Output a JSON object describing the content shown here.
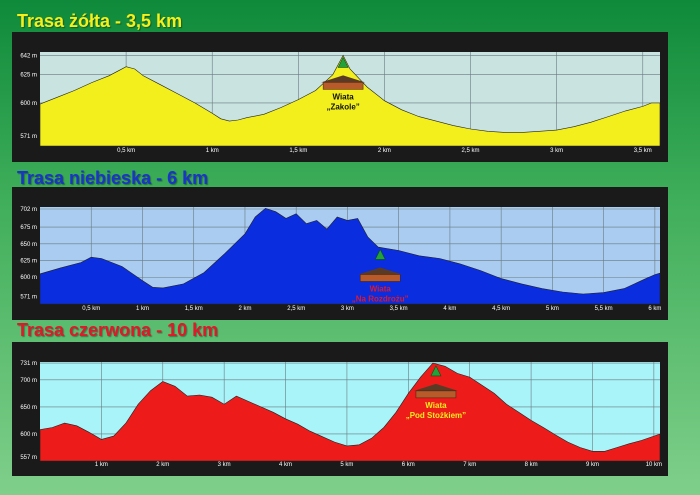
{
  "chart_data": [
    {
      "type": "area",
      "title": "Trasa żółta - 3,5 km",
      "title_color": "#f5ef1a",
      "fill_color": "#f2ef1d",
      "plot_bg": "#c8e3e0",
      "x_tick_labels": [
        "0,5 km",
        "1 km",
        "1,5 km",
        "2 km",
        "2,5 km",
        "3 km",
        "3,5 km"
      ],
      "x_ticks": [
        0.5,
        1,
        1.5,
        2,
        2.5,
        3,
        3.5
      ],
      "y_tick_labels": [
        "642 m",
        "625 m",
        "600 m",
        "571 m"
      ],
      "y_ticks": [
        642,
        625,
        600,
        571
      ],
      "xlim": [
        0,
        3.6
      ],
      "ylim": [
        562,
        645
      ],
      "x": [
        0,
        0.05,
        0.1,
        0.2,
        0.3,
        0.4,
        0.45,
        0.5,
        0.55,
        0.6,
        0.7,
        0.8,
        0.9,
        1.0,
        1.05,
        1.1,
        1.15,
        1.2,
        1.3,
        1.4,
        1.5,
        1.6,
        1.7,
        1.76,
        1.8,
        1.9,
        2.0,
        2.1,
        2.2,
        2.3,
        2.4,
        2.5,
        2.6,
        2.7,
        2.8,
        2.9,
        3.0,
        3.1,
        3.2,
        3.3,
        3.4,
        3.5,
        3.55,
        3.6
      ],
      "y": [
        599,
        602,
        605,
        611,
        618,
        624,
        628,
        632,
        630,
        624,
        616,
        608,
        600,
        591,
        586,
        584,
        585,
        587,
        590,
        596,
        603,
        611,
        625,
        642,
        630,
        614,
        602,
        594,
        588,
        584,
        580,
        577,
        575,
        574,
        574,
        575,
        576,
        579,
        583,
        588,
        593,
        597,
        600,
        600
      ],
      "shelter": {
        "label": "Wiata",
        "name": "„Zakole”",
        "x": 1.76,
        "label_color": "#111111"
      }
    },
    {
      "type": "area",
      "title": "Trasa niebieska - 6 km",
      "title_color": "#1a34c8",
      "fill_color": "#0a2de0",
      "plot_bg": "#a9ccf0",
      "x_tick_labels": [
        "0,5 km",
        "1 km",
        "1,5 km",
        "2 km",
        "2,5 km",
        "3 km",
        "3,5 km",
        "4 km",
        "4,5 km",
        "5 km",
        "5,5 km",
        "6 km"
      ],
      "x_ticks": [
        0.5,
        1,
        1.5,
        2,
        2.5,
        3,
        3.5,
        4,
        4.5,
        5,
        5.5,
        6
      ],
      "y_tick_labels": [
        "702 m",
        "675 m",
        "650 m",
        "625 m",
        "600 m",
        "571 m"
      ],
      "y_ticks": [
        702,
        675,
        650,
        625,
        600,
        571
      ],
      "xlim": [
        0,
        6.05
      ],
      "ylim": [
        560,
        705
      ],
      "x": [
        0,
        0.2,
        0.4,
        0.5,
        0.6,
        0.8,
        1.0,
        1.1,
        1.2,
        1.4,
        1.6,
        1.8,
        2.0,
        2.1,
        2.2,
        2.3,
        2.4,
        2.5,
        2.6,
        2.7,
        2.8,
        2.9,
        3.0,
        3.1,
        3.2,
        3.3,
        3.5,
        3.7,
        3.9,
        4.1,
        4.3,
        4.5,
        4.7,
        4.9,
        5.1,
        5.3,
        5.5,
        5.7,
        5.8,
        5.9,
        6.0,
        6.05
      ],
      "y": [
        605,
        614,
        622,
        630,
        628,
        616,
        595,
        585,
        584,
        590,
        607,
        635,
        665,
        690,
        703,
        698,
        688,
        695,
        680,
        685,
        672,
        690,
        685,
        688,
        660,
        645,
        640,
        632,
        628,
        620,
        610,
        598,
        590,
        583,
        578,
        575,
        577,
        583,
        590,
        597,
        604,
        606
      ],
      "shelter": {
        "label": "Wiata",
        "name": "„Na Rozdrożu”",
        "x": 3.32,
        "label_color": "#e0182a"
      }
    },
    {
      "type": "area",
      "title": "Trasa czerwona - 10 km",
      "title_color": "#e0182a",
      "fill_color": "#ee1b1b",
      "plot_bg": "#a8f4f8",
      "x_tick_labels": [
        "1 km",
        "2 km",
        "3 km",
        "4 km",
        "5 km",
        "6 km",
        "7 km",
        "8 km",
        "9 km",
        "10 km"
      ],
      "x_ticks": [
        1,
        2,
        3,
        4,
        5,
        6,
        7,
        8,
        9,
        10
      ],
      "y_tick_labels": [
        "731 m",
        "700 m",
        "650 m",
        "600 m",
        "557 m"
      ],
      "y_ticks": [
        731,
        700,
        650,
        600,
        557
      ],
      "xlim": [
        0,
        10.1
      ],
      "ylim": [
        550,
        733
      ],
      "x": [
        0,
        0.2,
        0.4,
        0.6,
        0.8,
        1.0,
        1.2,
        1.4,
        1.6,
        1.8,
        2.0,
        2.2,
        2.4,
        2.6,
        2.8,
        3.0,
        3.2,
        3.4,
        3.6,
        3.8,
        4.0,
        4.2,
        4.4,
        4.6,
        4.8,
        5.0,
        5.2,
        5.4,
        5.6,
        5.8,
        6.0,
        6.2,
        6.4,
        6.6,
        6.8,
        7.0,
        7.2,
        7.4,
        7.6,
        7.8,
        8.0,
        8.2,
        8.4,
        8.6,
        8.8,
        9.0,
        9.2,
        9.4,
        9.6,
        9.8,
        10.0,
        10.1
      ],
      "y": [
        608,
        612,
        620,
        615,
        603,
        590,
        596,
        620,
        655,
        680,
        697,
        688,
        670,
        672,
        668,
        655,
        670,
        660,
        650,
        640,
        628,
        618,
        605,
        595,
        585,
        578,
        580,
        592,
        612,
        640,
        675,
        705,
        731,
        725,
        712,
        705,
        690,
        675,
        655,
        640,
        625,
        612,
        598,
        585,
        575,
        568,
        568,
        575,
        582,
        588,
        596,
        600
      ],
      "shelter": {
        "label": "Wiata",
        "name": "„Pod Stożkiem”",
        "x": 6.45,
        "label_color": "#f5ef1a"
      }
    }
  ]
}
